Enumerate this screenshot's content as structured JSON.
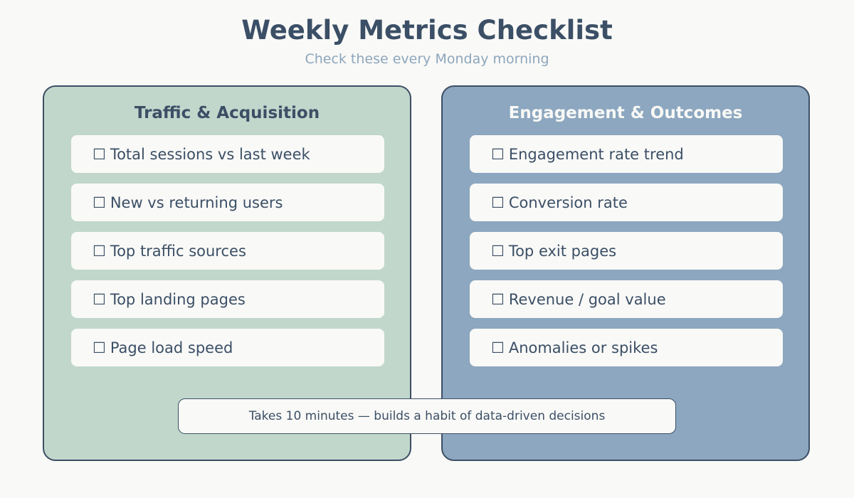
{
  "header": {
    "title": "Weekly Metrics Checklist",
    "subtitle": "Check these every Monday morning"
  },
  "panels": [
    {
      "title": "Traffic & Acquisition",
      "items": [
        "Total sessions vs last week",
        "New vs returning users",
        "Top traffic sources",
        "Top landing pages",
        "Page load speed"
      ]
    },
    {
      "title": "Engagement & Outcomes",
      "items": [
        "Engagement rate trend",
        "Conversion rate",
        "Top exit pages",
        "Revenue / goal value",
        "Anomalies or spikes"
      ]
    }
  ],
  "checkbox_glyph": "☐",
  "footer": {
    "note": "Takes 10 minutes — builds a habit of data-driven decisions"
  },
  "colors": {
    "background": "#f9f9f7",
    "text": "#3b4f66",
    "left_panel": "#c1d7cb",
    "right_panel": "#8ca7bf",
    "subtitle": "#8da6bd"
  }
}
